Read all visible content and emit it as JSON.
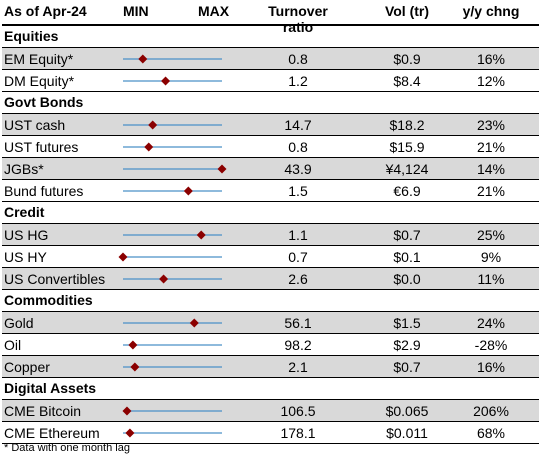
{
  "header": {
    "asof": "As of Apr-24",
    "min": "MIN",
    "max": "MAX",
    "turnover": "Turnover ratio",
    "vol": "Vol (tr)",
    "yoy": "y/y chng"
  },
  "colors": {
    "marker": "#8b0000",
    "line": "#4a90c8",
    "shade": "#d9d9d9"
  },
  "chart_data": {
    "type": "table",
    "range_marker_position_fraction_min_to_max": "pos",
    "sections": [
      {
        "name": "Equities",
        "rows": [
          {
            "label": "EM Equity*",
            "turnover": "0.8",
            "vol": "$0.9",
            "yoy": "16%",
            "pos": 0.2,
            "shade": true
          },
          {
            "label": "DM Equity*",
            "turnover": "1.2",
            "vol": "$8.4",
            "yoy": "12%",
            "pos": 0.43,
            "shade": false
          }
        ]
      },
      {
        "name": "Govt Bonds",
        "rows": [
          {
            "label": "UST cash",
            "turnover": "14.7",
            "vol": "$18.2",
            "yoy": "23%",
            "pos": 0.3,
            "shade": true
          },
          {
            "label": "UST futures",
            "turnover": "0.8",
            "vol": "$15.9",
            "yoy": "21%",
            "pos": 0.26,
            "shade": false
          },
          {
            "label": "JGBs*",
            "turnover": "43.9",
            "vol": "¥4,124",
            "yoy": "14%",
            "pos": 1.0,
            "shade": true
          },
          {
            "label": "Bund futures",
            "turnover": "1.5",
            "vol": "€6.9",
            "yoy": "21%",
            "pos": 0.66,
            "shade": false
          }
        ]
      },
      {
        "name": "Credit",
        "rows": [
          {
            "label": "US HG",
            "turnover": "1.1",
            "vol": "$0.7",
            "yoy": "25%",
            "pos": 0.79,
            "shade": true
          },
          {
            "label": "US HY",
            "turnover": "0.7",
            "vol": "$0.1",
            "yoy": "9%",
            "pos": 0.0,
            "shade": false
          },
          {
            "label": "US Convertibles",
            "turnover": "2.6",
            "vol": "$0.0",
            "yoy": "11%",
            "pos": 0.41,
            "shade": true
          }
        ]
      },
      {
        "name": "Commodities",
        "rows": [
          {
            "label": "Gold",
            "turnover": "56.1",
            "vol": "$1.5",
            "yoy": "24%",
            "pos": 0.72,
            "shade": true
          },
          {
            "label": "Oil",
            "turnover": "98.2",
            "vol": "$2.9",
            "yoy": "-28%",
            "pos": 0.1,
            "shade": false
          },
          {
            "label": "Copper",
            "turnover": "2.1",
            "vol": "$0.7",
            "yoy": "16%",
            "pos": 0.12,
            "shade": true
          }
        ]
      },
      {
        "name": "Digital Assets",
        "rows": [
          {
            "label": "CME Bitcoin",
            "turnover": "106.5",
            "vol": "$0.065",
            "yoy": "206%",
            "pos": 0.04,
            "shade": true
          },
          {
            "label": "CME Ethereum",
            "turnover": "178.1",
            "vol": "$0.011",
            "yoy": "68%",
            "pos": 0.07,
            "shade": false
          }
        ]
      }
    ]
  },
  "footnote": "* Data with one month lag"
}
